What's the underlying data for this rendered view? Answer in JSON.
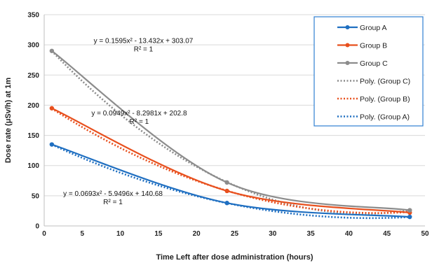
{
  "chart_data": {
    "type": "line",
    "title": "",
    "xlabel": "Time Left after dose administration (hours)",
    "ylabel": "Dose rate  (μSv/h) at 1m",
    "xlim": [
      0,
      50
    ],
    "ylim": [
      0,
      350
    ],
    "xticks": [
      0,
      5,
      10,
      15,
      20,
      25,
      30,
      35,
      40,
      45,
      50
    ],
    "yticks": [
      0,
      50,
      100,
      150,
      200,
      250,
      300,
      350
    ],
    "grid": true,
    "legend_position": "top-right",
    "series": [
      {
        "name": "Group A",
        "color": "#1f6fc1",
        "x": [
          1,
          24,
          48
        ],
        "y": [
          135,
          38,
          15
        ]
      },
      {
        "name": "Group B",
        "color": "#e8501e",
        "x": [
          1,
          24,
          48
        ],
        "y": [
          195,
          58,
          22
        ]
      },
      {
        "name": "Group C",
        "color": "#8c8c8c",
        "x": [
          1,
          24,
          48
        ],
        "y": [
          290,
          72,
          26
        ]
      }
    ],
    "trendlines": [
      {
        "name": "Poly. (Group C)",
        "color": "#8c8c8c",
        "coeffs": [
          0.1595,
          -13.432,
          303.07
        ],
        "equation": "y = 0.1595x² - 13.432x + 303.07",
        "r2": "R² = 1",
        "anchor": [
          6.5,
          303
        ]
      },
      {
        "name": "Poly. (Group B)",
        "color": "#e8501e",
        "coeffs": [
          0.0949,
          -8.2981,
          202.8
        ],
        "equation": "y = 0.0949x² - 8.2981x + 202.8",
        "r2": "R² = 1",
        "anchor": [
          6.2,
          183
        ]
      },
      {
        "name": "Poly. (Group A)",
        "color": "#1f6fc1",
        "coeffs": [
          0.0693,
          -5.9496,
          140.68
        ],
        "equation": "y = 0.0693x² - 5.9496x + 140.68",
        "r2": "R² = 1",
        "anchor": [
          2.5,
          50
        ]
      }
    ]
  }
}
